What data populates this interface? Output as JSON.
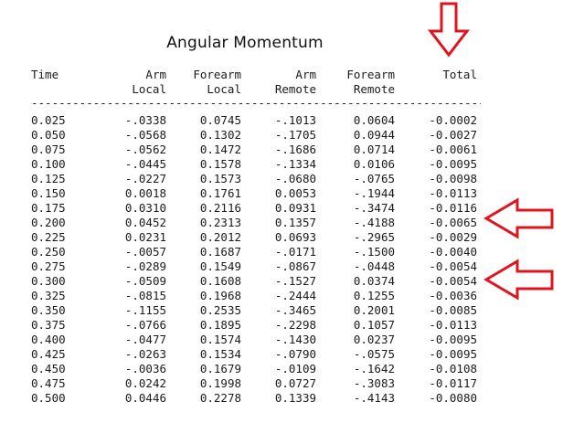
{
  "title": "Angular Momentum",
  "headers": {
    "time": "Time",
    "arm_local_1": "Arm",
    "arm_local_2": "Local",
    "forearm_local_1": "Forearm",
    "forearm_local_2": "Local",
    "arm_remote_1": "Arm",
    "arm_remote_2": "Remote",
    "forearm_remote_1": "Forearm",
    "forearm_remote_2": "Remote",
    "total": "Total"
  },
  "separator": "----------------------------------------------------------------------",
  "rows": [
    [
      "0.025",
      "-.0338",
      "0.0745",
      "-.1013",
      "0.0604",
      "-0.0002"
    ],
    [
      "0.050",
      "-.0568",
      "0.1302",
      "-.1705",
      "0.0944",
      "-0.0027"
    ],
    [
      "0.075",
      "-.0562",
      "0.1472",
      "-.1686",
      "0.0714",
      "-0.0061"
    ],
    [
      "0.100",
      "-.0445",
      "0.1578",
      "-.1334",
      "0.0106",
      "-0.0095"
    ],
    [
      "0.125",
      "-.0227",
      "0.1573",
      "-.0680",
      "-.0765",
      "-0.0098"
    ],
    [
      "0.150",
      "0.0018",
      "0.1761",
      "0.0053",
      "-.1944",
      "-0.0113"
    ],
    [
      "0.175",
      "0.0310",
      "0.2116",
      "0.0931",
      "-.3474",
      "-0.0116"
    ],
    [
      "0.200",
      "0.0452",
      "0.2313",
      "0.1357",
      "-.4188",
      "-0.0065"
    ],
    [
      "0.225",
      "0.0231",
      "0.2012",
      "0.0693",
      "-.2965",
      "-0.0029"
    ],
    [
      "0.250",
      "-.0057",
      "0.1687",
      "-.0171",
      "-.1500",
      "-0.0040"
    ],
    [
      "0.275",
      "-.0289",
      "0.1549",
      "-.0867",
      "-.0448",
      "-0.0054"
    ],
    [
      "0.300",
      "-.0509",
      "0.1608",
      "-.1527",
      "0.0374",
      "-0.0054"
    ],
    [
      "0.325",
      "-.0815",
      "0.1968",
      "-.2444",
      "0.1255",
      "-0.0036"
    ],
    [
      "0.350",
      "-.1155",
      "0.2535",
      "-.3465",
      "0.2001",
      "-0.0085"
    ],
    [
      "0.375",
      "-.0766",
      "0.1895",
      "-.2298",
      "0.1057",
      "-0.0113"
    ],
    [
      "0.400",
      "-.0477",
      "0.1574",
      "-.1430",
      "0.0237",
      "-0.0095"
    ],
    [
      "0.425",
      "-.0263",
      "0.1534",
      "-.0790",
      "-.0575",
      "-0.0095"
    ],
    [
      "0.450",
      "-.0036",
      "0.1679",
      "-.0109",
      "-.1642",
      "-0.0108"
    ],
    [
      "0.475",
      "0.0242",
      "0.1998",
      "0.0727",
      "-.3083",
      "-0.0117"
    ],
    [
      "0.500",
      "0.0446",
      "0.2278",
      "0.1339",
      "-.4143",
      "-0.0080"
    ]
  ],
  "annotations": {
    "arrow_color": "#e0141e",
    "arrows": [
      "down-arrow-icon",
      "left-arrow-icon",
      "left-arrow-icon"
    ]
  }
}
